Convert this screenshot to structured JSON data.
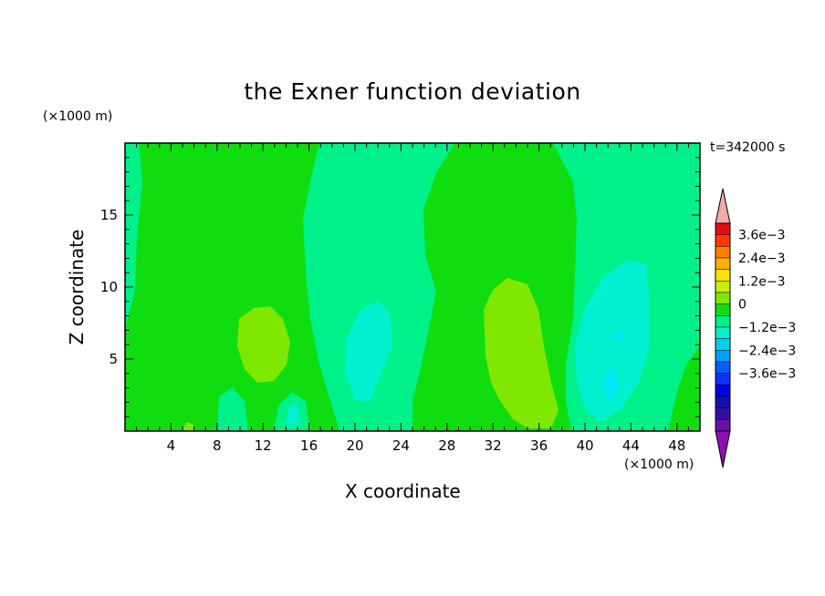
{
  "chart_data": {
    "type": "heatmap",
    "title": "the Exner function deviation",
    "xlabel": "X coordinate",
    "ylabel": "Z coordinate",
    "x_unit": "(×1000 m)",
    "y_unit": "(×1000 m)",
    "time_label": "t=342000 s",
    "xlim": [
      0,
      50
    ],
    "ylim": [
      0,
      20
    ],
    "x_ticks": [
      "4",
      "8",
      "12",
      "16",
      "20",
      "24",
      "28",
      "32",
      "36",
      "40",
      "44",
      "48"
    ],
    "y_ticks": [
      "5",
      "10",
      "15"
    ],
    "colorbar": {
      "labels": [
        "3.6e−3",
        "2.4e−3",
        "1.2e−3",
        "0",
        "−1.2e−3",
        "−2.4e−3",
        "−3.6e−3"
      ],
      "levels_top_to_bottom": [
        0.0036,
        0.003,
        0.0024,
        0.0018,
        0.0012,
        0.0006,
        0,
        -0.0006,
        -0.0012,
        -0.0018,
        -0.0024,
        -0.003,
        -0.0036
      ],
      "colors_top_to_bottom": [
        "#e01010",
        "#ff3a00",
        "#ff8000",
        "#ffb000",
        "#ffe000",
        "#c8f000",
        "#80e800",
        "#10dd10",
        "#00f08a",
        "#00f0d0",
        "#00d0f0",
        "#00a0ff",
        "#0060ff",
        "#1030ff",
        "#0000e0",
        "#1010b0",
        "#3010a0",
        "#6a10a8"
      ],
      "overflow_high_color": "#f4a8a8",
      "overflow_low_color": "#8a10b0"
    },
    "field_colors": {
      "background_band": "#00f08a",
      "positive_small": "#10dd10",
      "positive_medium": "#80e800",
      "negative_small": "#00f0d0",
      "negative_medium": "#00e8f8"
    },
    "grid": false
  }
}
